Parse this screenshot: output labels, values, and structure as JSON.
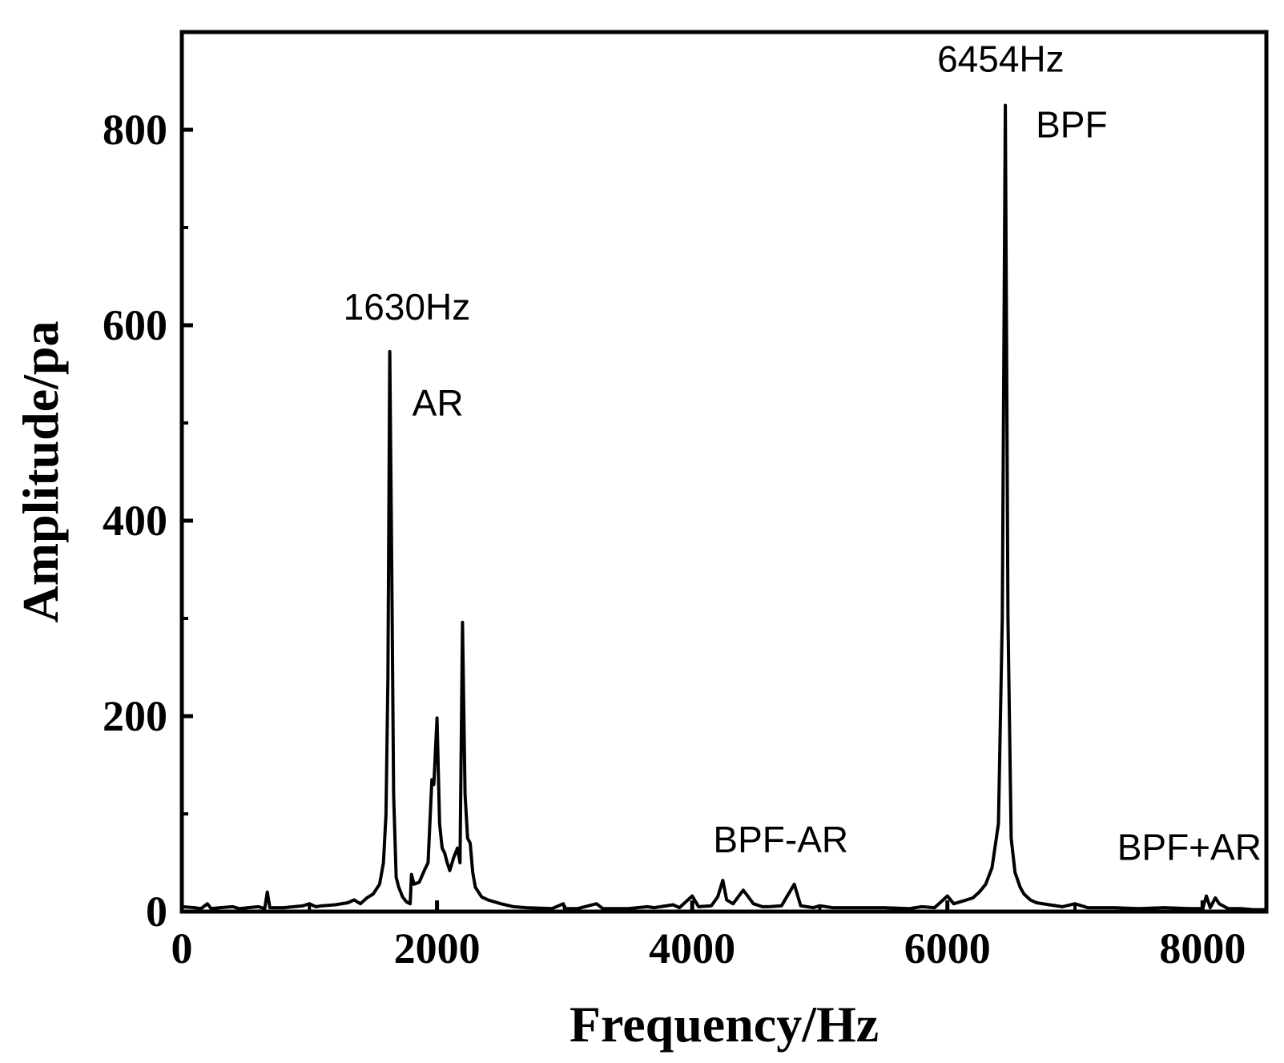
{
  "chart_data": {
    "type": "line",
    "title": "",
    "xlabel": "Frequency/Hz",
    "ylabel": "Amplitude/pa",
    "xlim": [
      0,
      8500
    ],
    "ylim": [
      0,
      900
    ],
    "x_ticks": [
      0,
      2000,
      4000,
      6000,
      8000
    ],
    "x_tick_labels": [
      "0",
      "2000",
      "4000",
      "6000",
      "8000"
    ],
    "y_ticks": [
      0,
      200,
      400,
      600,
      800
    ],
    "y_tick_labels": [
      "0",
      "200",
      "400",
      "600",
      "800"
    ],
    "y_minor_ticks": [
      100,
      300,
      500,
      700
    ],
    "grid": false,
    "legend": "none",
    "line_color": "#000000",
    "series": [
      {
        "points": [
          [
            0,
            5
          ],
          [
            100,
            4
          ],
          [
            150,
            3
          ],
          [
            200,
            8
          ],
          [
            230,
            3
          ],
          [
            300,
            4
          ],
          [
            400,
            5
          ],
          [
            450,
            3
          ],
          [
            600,
            5
          ],
          [
            650,
            3
          ],
          [
            670,
            20
          ],
          [
            690,
            4
          ],
          [
            800,
            4
          ],
          [
            950,
            6
          ],
          [
            1000,
            8
          ],
          [
            1050,
            5
          ],
          [
            1100,
            6
          ],
          [
            1200,
            7
          ],
          [
            1300,
            9
          ],
          [
            1350,
            12
          ],
          [
            1400,
            8
          ],
          [
            1450,
            14
          ],
          [
            1500,
            18
          ],
          [
            1550,
            28
          ],
          [
            1580,
            50
          ],
          [
            1600,
            100
          ],
          [
            1615,
            240
          ],
          [
            1630,
            573
          ],
          [
            1645,
            360
          ],
          [
            1660,
            120
          ],
          [
            1680,
            35
          ],
          [
            1700,
            25
          ],
          [
            1730,
            15
          ],
          [
            1760,
            10
          ],
          [
            1790,
            8
          ],
          [
            1800,
            38
          ],
          [
            1820,
            28
          ],
          [
            1860,
            30
          ],
          [
            1900,
            42
          ],
          [
            1930,
            50
          ],
          [
            1960,
            135
          ],
          [
            1975,
            130
          ],
          [
            2000,
            198
          ],
          [
            2020,
            90
          ],
          [
            2040,
            65
          ],
          [
            2060,
            60
          ],
          [
            2080,
            50
          ],
          [
            2100,
            42
          ],
          [
            2130,
            55
          ],
          [
            2160,
            65
          ],
          [
            2180,
            50
          ],
          [
            2200,
            296
          ],
          [
            2220,
            120
          ],
          [
            2240,
            75
          ],
          [
            2260,
            70
          ],
          [
            2280,
            40
          ],
          [
            2300,
            25
          ],
          [
            2350,
            15
          ],
          [
            2400,
            12
          ],
          [
            2450,
            10
          ],
          [
            2500,
            8
          ],
          [
            2600,
            5
          ],
          [
            2700,
            4
          ],
          [
            2900,
            3
          ],
          [
            2990,
            8
          ],
          [
            3000,
            3
          ],
          [
            3100,
            3
          ],
          [
            3250,
            8
          ],
          [
            3300,
            3
          ],
          [
            3500,
            3
          ],
          [
            3650,
            5
          ],
          [
            3700,
            4
          ],
          [
            3850,
            7
          ],
          [
            3900,
            4
          ],
          [
            4000,
            16
          ],
          [
            4050,
            5
          ],
          [
            4150,
            6
          ],
          [
            4200,
            15
          ],
          [
            4240,
            32
          ],
          [
            4270,
            12
          ],
          [
            4320,
            8
          ],
          [
            4400,
            22
          ],
          [
            4440,
            15
          ],
          [
            4480,
            8
          ],
          [
            4550,
            5
          ],
          [
            4600,
            5
          ],
          [
            4700,
            6
          ],
          [
            4800,
            28
          ],
          [
            4850,
            6
          ],
          [
            4950,
            4
          ],
          [
            5000,
            6
          ],
          [
            5100,
            4
          ],
          [
            5300,
            4
          ],
          [
            5500,
            4
          ],
          [
            5700,
            3
          ],
          [
            5800,
            5
          ],
          [
            5900,
            4
          ],
          [
            6000,
            16
          ],
          [
            6050,
            8
          ],
          [
            6150,
            12
          ],
          [
            6200,
            14
          ],
          [
            6250,
            20
          ],
          [
            6300,
            28
          ],
          [
            6350,
            45
          ],
          [
            6400,
            90
          ],
          [
            6430,
            300
          ],
          [
            6454,
            825
          ],
          [
            6475,
            300
          ],
          [
            6500,
            75
          ],
          [
            6530,
            40
          ],
          [
            6570,
            25
          ],
          [
            6600,
            18
          ],
          [
            6650,
            12
          ],
          [
            6700,
            9
          ],
          [
            6800,
            7
          ],
          [
            6900,
            5
          ],
          [
            7000,
            8
          ],
          [
            7100,
            4
          ],
          [
            7300,
            4
          ],
          [
            7500,
            3
          ],
          [
            7700,
            4
          ],
          [
            7900,
            3
          ],
          [
            8000,
            3
          ],
          [
            8030,
            16
          ],
          [
            8060,
            4
          ],
          [
            8100,
            14
          ],
          [
            8130,
            8
          ],
          [
            8200,
            3
          ],
          [
            8300,
            3
          ],
          [
            8400,
            2
          ],
          [
            8500,
            2
          ]
        ]
      }
    ],
    "annotations": [
      {
        "text": "1630Hz",
        "x": 1630,
        "y": 573
      },
      {
        "text": "AR",
        "x": 1630,
        "y": 573
      },
      {
        "text": "6454Hz",
        "x": 6454,
        "y": 825
      },
      {
        "text": "BPF",
        "x": 6454,
        "y": 825
      },
      {
        "text": "BPF-AR",
        "x": 4824,
        "y": 32
      },
      {
        "text": "BPF+AR",
        "x": 8084,
        "y": 16
      }
    ]
  }
}
